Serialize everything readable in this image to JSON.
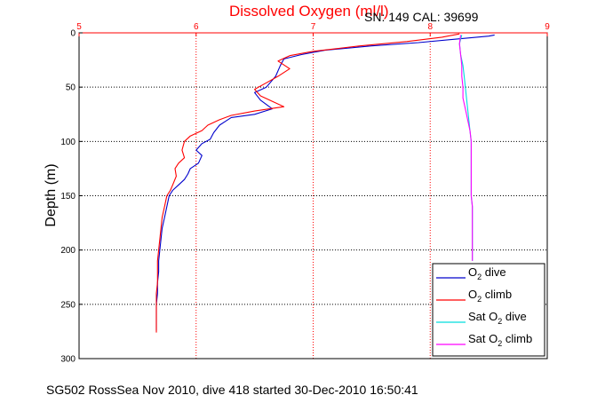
{
  "chart_data": {
    "type": "line",
    "title": "Dissolved Oxygen (ml/l)",
    "subtitle": "SN: 149  CAL: 39699",
    "ylabel": "Depth (m)",
    "footer": "SG502 RossSea Nov 2010, dive 418 started 30-Dec-2010 16:50:41",
    "xlim": [
      5,
      9
    ],
    "ylim": [
      0,
      300
    ],
    "y_reversed": true,
    "x_axis_position": "top",
    "x_ticks": [
      "5",
      "6",
      "7",
      "8",
      "9"
    ],
    "y_ticks": [
      "0",
      "50",
      "100",
      "150",
      "200",
      "250",
      "300"
    ],
    "grid": true,
    "legend_position": "bottom-right",
    "legend": [
      {
        "pre": "O",
        "sub": "2",
        "post": " dive"
      },
      {
        "pre": "O",
        "sub": "2",
        "post": " climb"
      },
      {
        "pre": "Sat O",
        "sub": "2",
        "post": " dive"
      },
      {
        "pre": "Sat O",
        "sub": "2",
        "post": " climb"
      }
    ],
    "series": [
      {
        "name": "O2 dive",
        "color": "#0000cc",
        "points": [
          [
            8.55,
            2
          ],
          [
            8.5,
            3
          ],
          [
            8.2,
            6
          ],
          [
            7.9,
            9
          ],
          [
            7.5,
            12
          ],
          [
            7.1,
            16
          ],
          [
            6.9,
            20
          ],
          [
            6.75,
            24
          ],
          [
            6.72,
            30
          ],
          [
            6.68,
            40
          ],
          [
            6.6,
            50
          ],
          [
            6.5,
            55
          ],
          [
            6.55,
            62
          ],
          [
            6.65,
            70
          ],
          [
            6.5,
            75
          ],
          [
            6.3,
            78
          ],
          [
            6.2,
            85
          ],
          [
            6.15,
            92
          ],
          [
            6.12,
            98
          ],
          [
            6.05,
            102
          ],
          [
            6.0,
            108
          ],
          [
            6.05,
            113
          ],
          [
            6.02,
            120
          ],
          [
            5.95,
            125
          ],
          [
            5.93,
            130
          ],
          [
            5.9,
            135
          ],
          [
            5.85,
            140
          ],
          [
            5.8,
            145
          ],
          [
            5.77,
            150
          ],
          [
            5.75,
            160
          ],
          [
            5.73,
            170
          ],
          [
            5.71,
            180
          ],
          [
            5.7,
            190
          ],
          [
            5.69,
            200
          ],
          [
            5.68,
            210
          ],
          [
            5.68,
            220
          ],
          [
            5.67,
            230
          ],
          [
            5.67,
            240
          ],
          [
            5.66,
            250
          ],
          [
            5.66,
            260
          ],
          [
            5.66,
            270
          ],
          [
            5.66,
            274
          ]
        ]
      },
      {
        "name": "O2 climb",
        "color": "#ff0000",
        "points": [
          [
            8.25,
            1
          ],
          [
            8.1,
            4
          ],
          [
            7.8,
            8
          ],
          [
            7.4,
            12
          ],
          [
            7.0,
            17
          ],
          [
            6.8,
            21
          ],
          [
            6.7,
            26
          ],
          [
            6.8,
            33
          ],
          [
            6.7,
            40
          ],
          [
            6.6,
            46
          ],
          [
            6.5,
            52
          ],
          [
            6.55,
            58
          ],
          [
            6.75,
            68
          ],
          [
            6.5,
            72
          ],
          [
            6.3,
            76
          ],
          [
            6.2,
            80
          ],
          [
            6.1,
            85
          ],
          [
            6.05,
            90
          ],
          [
            5.95,
            95
          ],
          [
            5.9,
            100
          ],
          [
            5.88,
            108
          ],
          [
            5.9,
            115
          ],
          [
            5.85,
            120
          ],
          [
            5.82,
            125
          ],
          [
            5.83,
            132
          ],
          [
            5.8,
            140
          ],
          [
            5.78,
            145
          ],
          [
            5.75,
            150
          ],
          [
            5.73,
            160
          ],
          [
            5.71,
            170
          ],
          [
            5.7,
            180
          ],
          [
            5.69,
            190
          ],
          [
            5.68,
            200
          ],
          [
            5.67,
            210
          ],
          [
            5.67,
            220
          ],
          [
            5.67,
            230
          ],
          [
            5.66,
            240
          ],
          [
            5.66,
            250
          ],
          [
            5.66,
            260
          ],
          [
            5.66,
            270
          ],
          [
            5.66,
            276
          ]
        ]
      },
      {
        "name": "Sat O2 dive",
        "color": "#00dddd",
        "points": [
          [
            8.27,
            2
          ],
          [
            8.25,
            10
          ],
          [
            8.26,
            20
          ],
          [
            8.28,
            30
          ],
          [
            8.29,
            40
          ],
          [
            8.3,
            50
          ],
          [
            8.31,
            60
          ],
          [
            8.32,
            70
          ],
          [
            8.33,
            80
          ],
          [
            8.34,
            90
          ],
          [
            8.35,
            100
          ],
          [
            8.35,
            110
          ],
          [
            8.35,
            120
          ],
          [
            8.35,
            130
          ],
          [
            8.35,
            140
          ],
          [
            8.35,
            150
          ],
          [
            8.36,
            160
          ],
          [
            8.36,
            170
          ],
          [
            8.36,
            180
          ],
          [
            8.36,
            190
          ],
          [
            8.36,
            200
          ],
          [
            8.36,
            210
          ]
        ]
      },
      {
        "name": "Sat O2 climb",
        "color": "#ff00ff",
        "points": [
          [
            8.26,
            2
          ],
          [
            8.25,
            10
          ],
          [
            8.26,
            20
          ],
          [
            8.27,
            30
          ],
          [
            8.27,
            40
          ],
          [
            8.28,
            50
          ],
          [
            8.28,
            60
          ],
          [
            8.3,
            70
          ],
          [
            8.32,
            80
          ],
          [
            8.34,
            90
          ],
          [
            8.35,
            100
          ],
          [
            8.35,
            110
          ],
          [
            8.35,
            120
          ],
          [
            8.35,
            130
          ],
          [
            8.35,
            140
          ],
          [
            8.35,
            150
          ],
          [
            8.36,
            160
          ],
          [
            8.36,
            170
          ],
          [
            8.36,
            180
          ],
          [
            8.36,
            190
          ],
          [
            8.36,
            200
          ],
          [
            8.36,
            210
          ]
        ]
      }
    ]
  }
}
